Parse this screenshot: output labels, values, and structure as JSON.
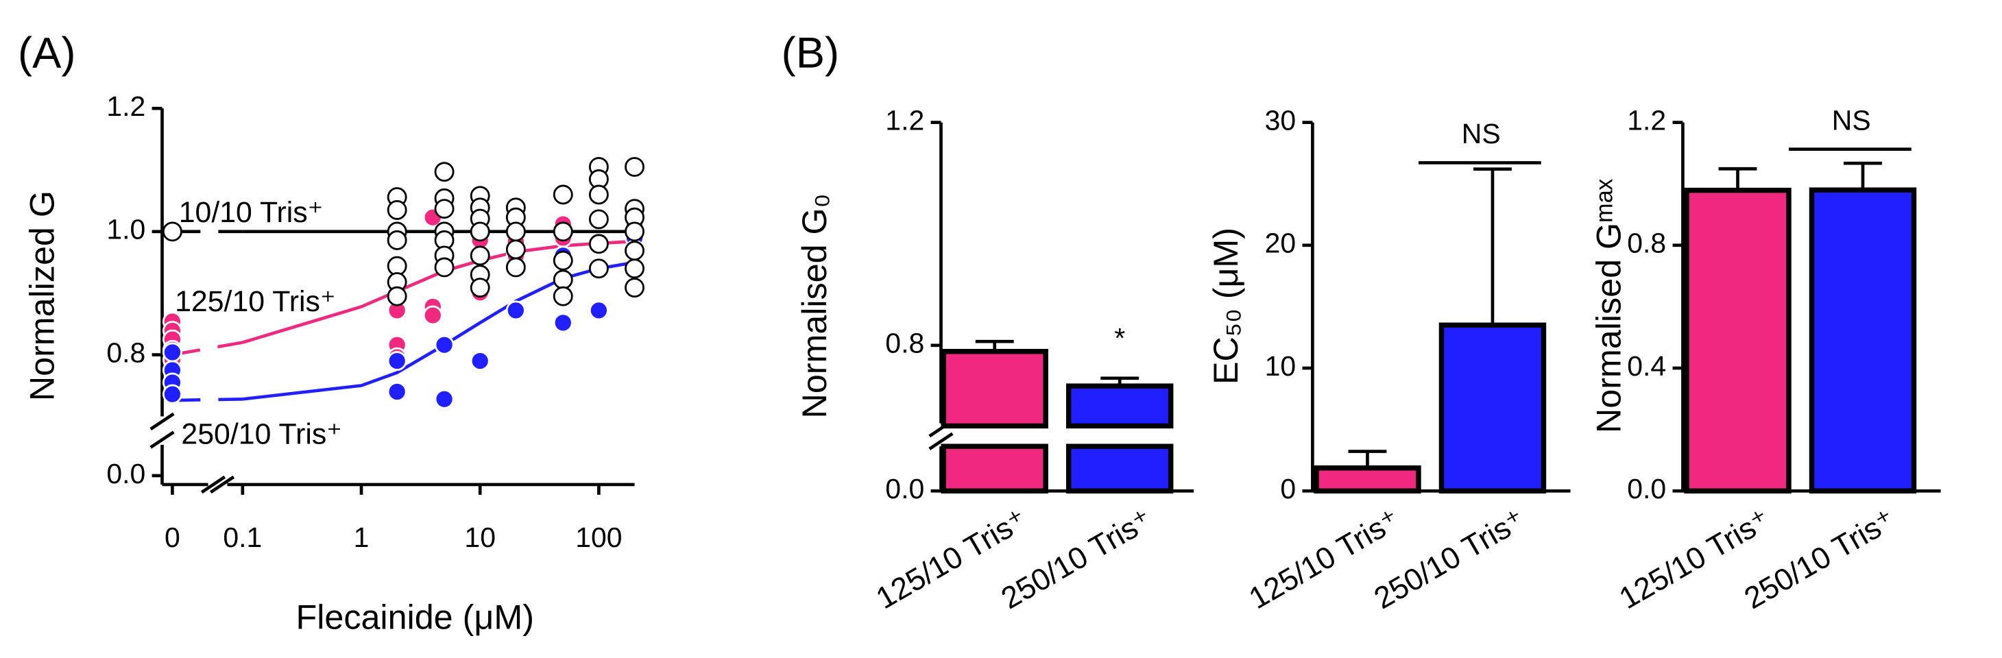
{
  "chart_data": [
    {
      "type": "scatter",
      "panel_label": "(A)",
      "ylabel": "Normalized G",
      "xlabel": "Flecainide (μM)",
      "xscale": "log",
      "xlim": [
        0,
        200
      ],
      "xbreak": [
        0,
        0.1
      ],
      "xticks": [
        0,
        0.1,
        1,
        10,
        100
      ],
      "ylim": [
        0,
        1.2
      ],
      "ybreak": [
        0.05,
        0.7
      ],
      "yticks": [
        {
          "value": 0,
          "label": "0.0"
        },
        0.8,
        {
          "value": 1,
          "label": "1.0"
        },
        1.2
      ],
      "series": [
        {
          "name": "10/10 Tris⁺",
          "color": "#000000",
          "label_color": "#000000",
          "marker_fill": "#ffffff",
          "x": [
            0,
            2,
            2,
            2,
            2,
            2,
            2,
            2,
            5,
            5,
            5,
            5,
            5,
            5,
            5,
            10,
            10,
            10,
            10,
            10,
            10,
            10,
            20,
            20,
            20,
            20,
            20,
            50,
            50,
            50,
            50,
            50,
            100,
            100,
            100,
            100,
            100,
            100,
            200,
            200,
            200,
            200,
            200,
            200,
            200
          ],
          "values": [
            1.0,
            1.056,
            1.035,
            1.0,
            0.986,
            0.944,
            0.918,
            0.895,
            1.097,
            1.054,
            1.037,
            1.0,
            0.986,
            0.961,
            0.942,
            1.058,
            1.039,
            1.021,
            1.0,
            0.961,
            0.93,
            0.909,
            1.039,
            1.023,
            1.0,
            0.971,
            0.942,
            1.06,
            1.0,
            0.953,
            0.922,
            0.895,
            1.105,
            1.085,
            1.06,
            1.02,
            0.98,
            0.94,
            1.105,
            1.037,
            1.023,
            1.0,
            0.969,
            0.94,
            0.909
          ],
          "fit_x": [
            0,
            0.1,
            200
          ],
          "fit_values": [
            1.0,
            1.0,
            1.0
          ]
        },
        {
          "name": "125/10 Tris⁺",
          "color": "#f0287f",
          "label_color": "#ff1010",
          "marker_fill": "#f0287f",
          "x": [
            0,
            0,
            0,
            0,
            0,
            0,
            2,
            2,
            2,
            2,
            4,
            4,
            4,
            10,
            10,
            10,
            20,
            20,
            20,
            50,
            50,
            100,
            200,
            200
          ],
          "values": [
            0.854,
            0.839,
            0.825,
            0.808,
            0.792,
            0.775,
            0.893,
            0.872,
            0.816,
            0.796,
            1.023,
            0.878,
            0.864,
            0.986,
            0.915,
            0.901,
            0.984,
            0.961,
            0.942,
            1.012,
            0.99,
            1.019,
            1.01,
            0.994
          ],
          "fit_x": [
            0,
            0.1,
            1,
            2,
            5,
            10,
            20,
            50,
            100,
            200
          ],
          "fit_values": [
            0.8,
            0.82,
            0.878,
            0.903,
            0.936,
            0.953,
            0.967,
            0.977,
            0.981,
            0.984
          ]
        },
        {
          "name": "250/10 Tris⁺",
          "color": "#1f1fff",
          "label_color": "#1f1fff",
          "marker_fill": "#1f1fff",
          "x": [
            0,
            0,
            0,
            0,
            2,
            2,
            5,
            5,
            10,
            20,
            50,
            50,
            100,
            200,
            200
          ],
          "values": [
            0.804,
            0.775,
            0.755,
            0.736,
            0.79,
            0.74,
            0.816,
            0.728,
            0.79,
            0.872,
            0.961,
            0.852,
            0.872,
            0.99,
            0.971
          ],
          "fit_x": [
            0,
            0.1,
            1,
            2,
            5,
            10,
            20,
            50,
            100,
            200
          ],
          "fit_values": [
            0.726,
            0.728,
            0.75,
            0.771,
            0.816,
            0.852,
            0.887,
            0.924,
            0.94,
            0.95
          ]
        }
      ]
    },
    {
      "type": "bar",
      "panel_label": "(B)",
      "ylabel": "Normalised G₀",
      "categories": [
        "125/10 Tris⁺",
        "250/10 Tris⁺"
      ],
      "values": [
        0.789,
        0.727
      ],
      "errors": [
        0.018,
        0.014
      ],
      "colors": [
        "#f0287f",
        "#1f1fff"
      ],
      "ylim": [
        0,
        1.2
      ],
      "ybreak": [
        0.08,
        0.66
      ],
      "yticks": [
        {
          "value": 0,
          "label": "0.0"
        },
        0.8,
        1.2
      ],
      "annotation": "*"
    },
    {
      "type": "bar",
      "ylabel": "EC₅₀ (μM)",
      "categories": [
        "125/10 Tris⁺",
        "250/10 Tris⁺"
      ],
      "values": [
        1.87,
        13.5
      ],
      "errors": [
        1.35,
        12.7
      ],
      "colors": [
        "#f0287f",
        "#1f1fff"
      ],
      "ylim": [
        0,
        30
      ],
      "yticks": [
        0,
        10,
        20,
        30
      ],
      "annotation": "NS"
    },
    {
      "type": "bar",
      "ylabel": "Normalised Gᵐᵃˣ",
      "categories": [
        "125/10 Tris⁺",
        "250/10 Tris⁺"
      ],
      "values": [
        0.979,
        0.98
      ],
      "errors": [
        0.07,
        0.087
      ],
      "colors": [
        "#f0287f",
        "#1f1fff"
      ],
      "ylim": [
        0,
        1.2
      ],
      "yticks": [
        {
          "value": 0,
          "label": "0.0"
        },
        0.4,
        0.8,
        1.2
      ],
      "annotation": "NS"
    }
  ]
}
